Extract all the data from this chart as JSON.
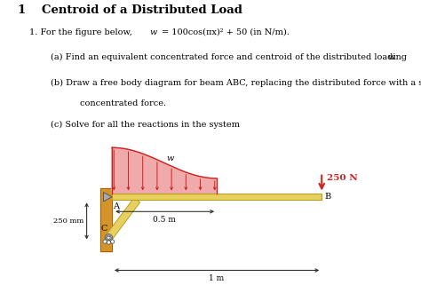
{
  "title": "1   Centroid of a Distributed Load",
  "line1": "1. For the figure below, w = 100cos(πx)² + 50 (in N/m).",
  "part_a": "(a) Find an equivalent concentrated force and centroid of the distributed loading w.",
  "part_b_1": "(b) Draw a free body diagram for beam ABC, replacing the distributed force with a single",
  "part_b_2": "        concentrated force.",
  "part_c": "(c) Solve for all the reactions in the system",
  "beam_color": "#e8d060",
  "beam_edge": "#b8a020",
  "wall_color": "#d4942a",
  "wall_edge": "#a06010",
  "load_fill": "#f0aaaa",
  "load_edge": "#cc2222",
  "arrow_red": "#cc2222",
  "pin_color": "#aaaaaa",
  "strut_fill": "#e8d060",
  "bg": "#ffffff",
  "label_250N": "250 N",
  "label_A": "A",
  "label_B": "B",
  "label_C": "C",
  "label_05m": "0.5 m",
  "label_1m": "1 m",
  "label_250mm": "250 mm",
  "label_w": "w"
}
